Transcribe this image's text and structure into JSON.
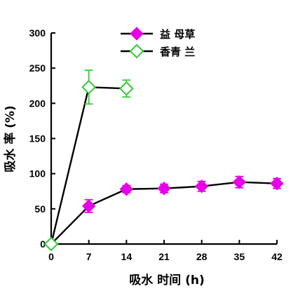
{
  "chart_data": {
    "type": "line",
    "xlabel": "吸水 时间 (h)",
    "ylabel": "吸水 率 (%)",
    "xlim": [
      0,
      42
    ],
    "ylim": [
      0,
      300
    ],
    "xticks": [
      "0",
      "7",
      "14",
      "21",
      "28",
      "35",
      "42"
    ],
    "yticks": [
      "0",
      "50",
      "100",
      "150",
      "200",
      "250",
      "300"
    ],
    "grid": false,
    "legend_position": "top-center",
    "series": [
      {
        "name": "益 母草",
        "color": "#e600e6",
        "marker": "filled-diamond",
        "x": [
          0,
          7,
          14,
          21,
          28,
          35,
          42
        ],
        "y": [
          0,
          54,
          78,
          79,
          82,
          88,
          86
        ],
        "err": [
          0,
          9,
          5,
          6,
          7,
          8,
          7
        ]
      },
      {
        "name": "香青 兰",
        "color": "#33cc33",
        "marker": "hollow-diamond",
        "x": [
          0,
          7,
          14
        ],
        "y": [
          0,
          223,
          221
        ],
        "err": [
          0,
          24,
          12
        ]
      }
    ]
  }
}
